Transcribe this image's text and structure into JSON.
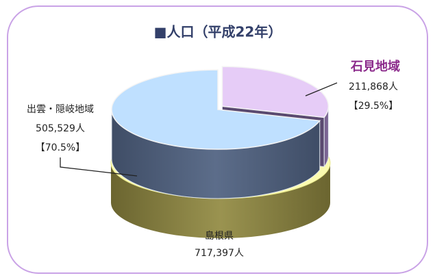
{
  "chart_data": {
    "type": "pie",
    "title": "■人口（平成22年）",
    "categories": [
      "石見地域",
      "出雲・隠岐地域"
    ],
    "values": [
      211868,
      505529
    ],
    "value_labels": [
      "211,868人",
      "505,529人"
    ],
    "percents": [
      29.5,
      70.5
    ],
    "percent_labels": [
      "【29.5%】",
      "【70.5%】"
    ],
    "colors": [
      "#e6ccf7",
      "#bfe0ff"
    ],
    "total": {
      "label": "島根県",
      "value": 717397,
      "value_label": "717,397人"
    }
  }
}
